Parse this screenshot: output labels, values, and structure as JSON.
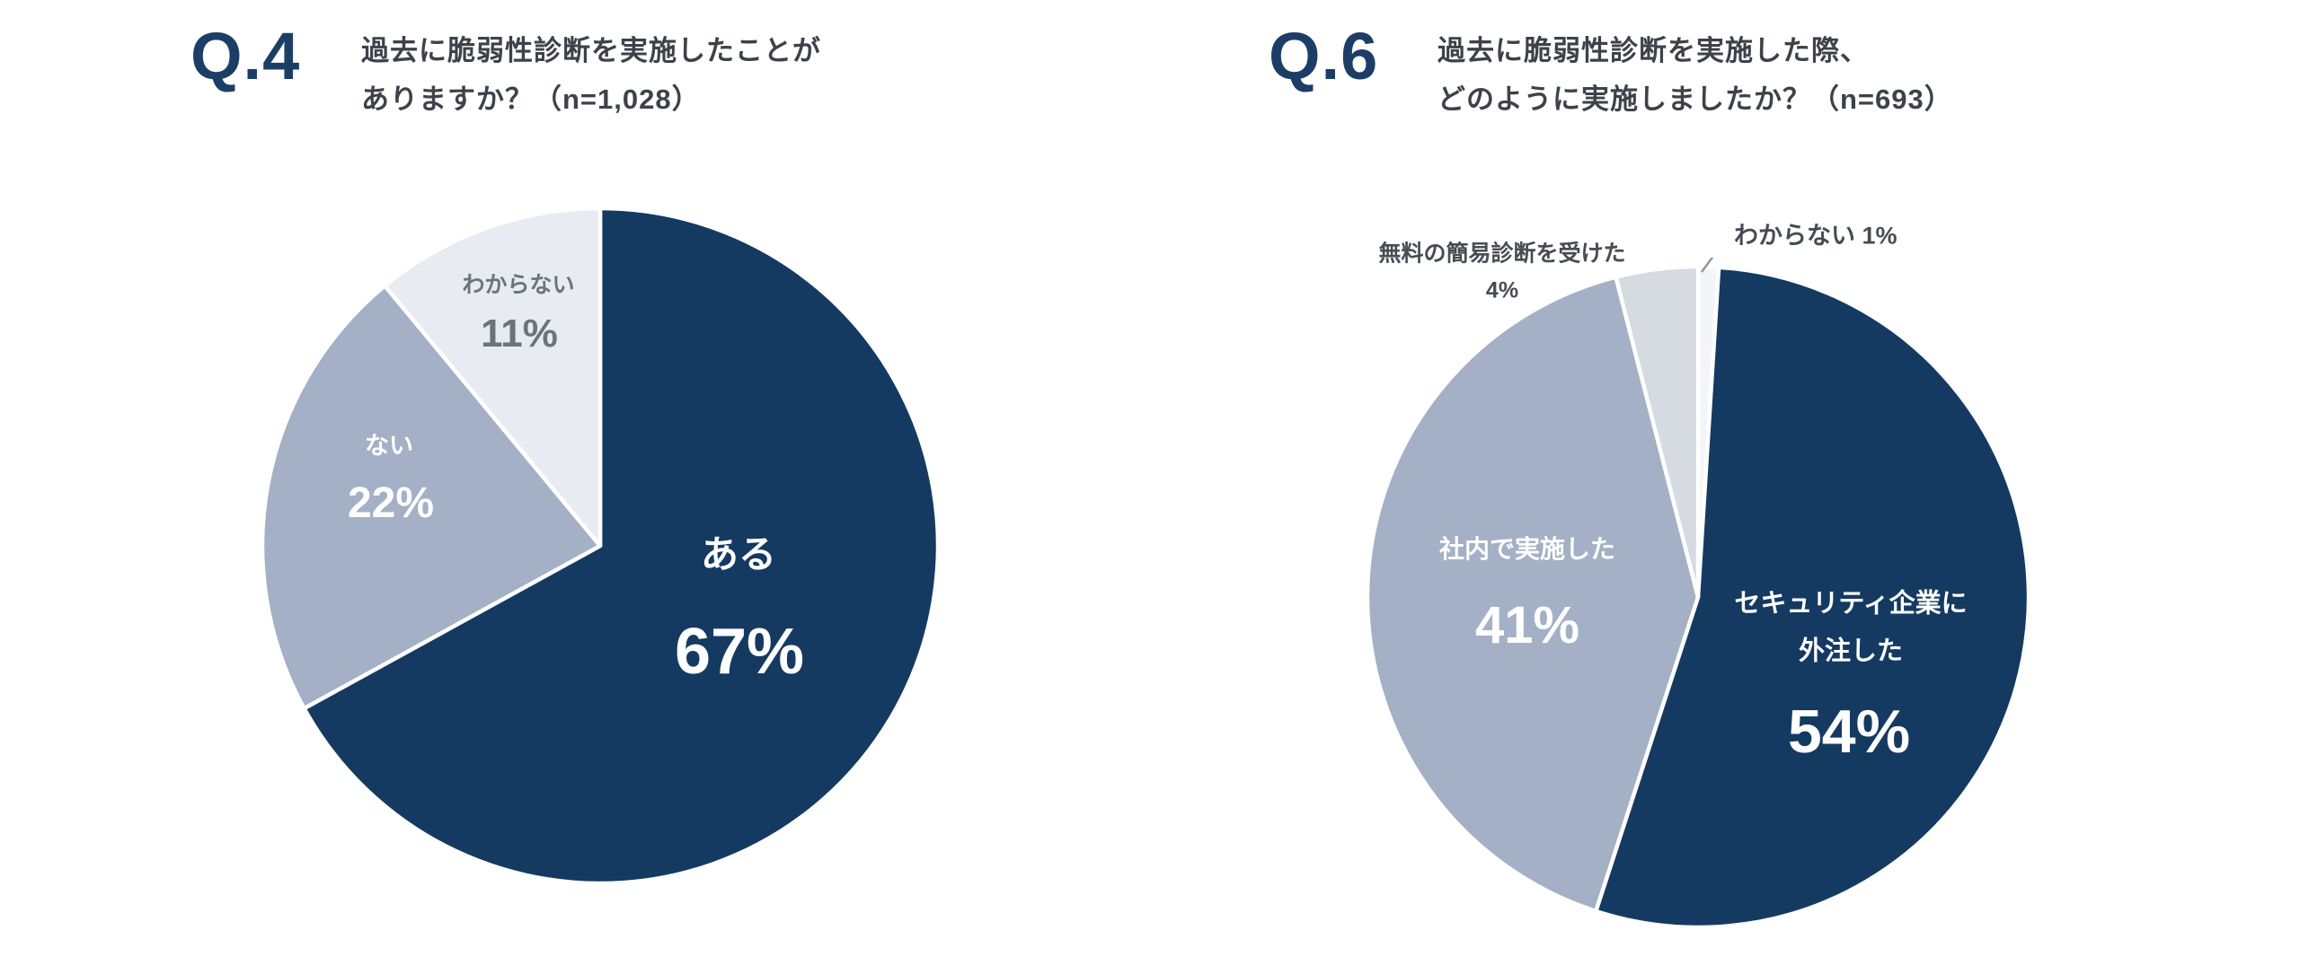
{
  "page": {
    "background": "#ffffff",
    "accent_navy": "#1c3e66",
    "title_text_color": "#3d424a"
  },
  "chart_data": [
    {
      "type": "pie",
      "q_label": "Q.4",
      "title_line1": "過去に脆弱性診断を実施したことが",
      "title_line2": "ありますか？（n=1,028）",
      "n": "1,028",
      "start_angle_deg": 0,
      "direction": "clockwise",
      "legend": "none",
      "slices": [
        {
          "label": "ある",
          "value": 67,
          "pct_label": "67%",
          "color": "#153a62",
          "label_color": "#ffffff"
        },
        {
          "label": "ない",
          "value": 22,
          "pct_label": "22%",
          "color": "#a4b0c5",
          "label_color": "#ffffff"
        },
        {
          "label": "わからない",
          "value": 11,
          "pct_label": "11%",
          "color": "#e8ebf1",
          "label_color": "#6e737b"
        }
      ]
    },
    {
      "type": "pie",
      "q_label": "Q.6",
      "title_line1": "過去に脆弱性診断を実施した際、",
      "title_line2": "どのように実施しましたか？（n=693）",
      "n": "693",
      "start_angle_deg": 0,
      "direction": "clockwise",
      "legend": "none",
      "slices": [
        {
          "label": "わからない",
          "value": 1,
          "pct_label": "1%",
          "color": "#f3f5f8",
          "label_color": "#474c54",
          "callout": "わからない 1%"
        },
        {
          "label": "セキュリティ企業に外注した",
          "value": 54,
          "pct_label": "54%",
          "color": "#153a62",
          "label_color": "#ffffff",
          "label_line1": "セキュリティ企業に",
          "label_line2": "外注した"
        },
        {
          "label": "社内で実施した",
          "value": 41,
          "pct_label": "41%",
          "color": "#a4b0c5",
          "label_color": "#ffffff"
        },
        {
          "label": "無料の簡易診断を受けた",
          "value": 4,
          "pct_label": "4%",
          "color": "#d6dae1",
          "label_color": "#474c54"
        }
      ]
    }
  ]
}
